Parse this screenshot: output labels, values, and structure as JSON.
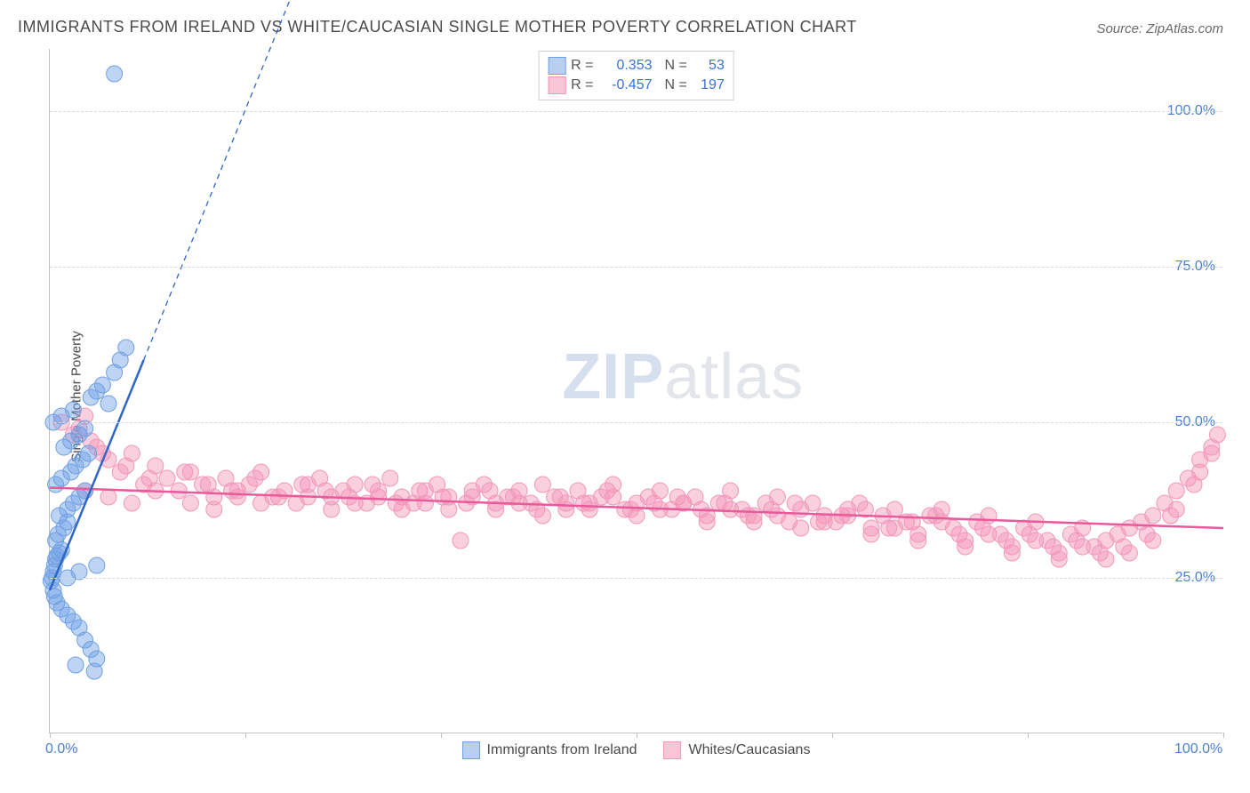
{
  "title": "IMMIGRANTS FROM IRELAND VS WHITE/CAUCASIAN SINGLE MOTHER POVERTY CORRELATION CHART",
  "source": "Source: ZipAtlas.com",
  "ylabel": "Single Mother Poverty",
  "watermark": "ZIPatlas",
  "chart": {
    "type": "scatter",
    "xlim": [
      0,
      100
    ],
    "ylim": [
      0,
      110
    ],
    "xtick_labels": [
      "0.0%",
      "100.0%"
    ],
    "xtick_positions": [
      0,
      100
    ],
    "xtick_marks": [
      0,
      16.67,
      33.33,
      50,
      66.67,
      83.33,
      100
    ],
    "ytick_labels": [
      "25.0%",
      "50.0%",
      "75.0%",
      "100.0%"
    ],
    "ytick_positions": [
      25,
      50,
      75,
      100
    ],
    "grid_color": "#d8d8d8",
    "axis_color": "#c0c0c0",
    "tick_label_color": "#4a7fd6",
    "background_color": "#ffffff",
    "marker_radius": 9,
    "marker_opacity": 0.55,
    "trend_line_width": 2.5,
    "trend_dash_width": 1.3
  },
  "series": [
    {
      "name": "Immigrants from Ireland",
      "color_fill": "rgba(110,160,230,0.45)",
      "color_stroke": "#6fa0e0",
      "swatch_fill": "#b8cff0",
      "swatch_border": "#6fa0e0",
      "trend_color": "#2e66c9",
      "R": "0.353",
      "N": "53",
      "stat_color": "#3a72d4",
      "trend": {
        "x1": 0,
        "y1": 23,
        "x2": 8,
        "y2": 60,
        "dash_x2": 22,
        "dash_y2": 125
      },
      "points": [
        [
          0.1,
          24.5
        ],
        [
          0.2,
          25
        ],
        [
          0.3,
          26
        ],
        [
          0.4,
          27
        ],
        [
          0.5,
          28
        ],
        [
          0.6,
          28.5
        ],
        [
          0.8,
          29
        ],
        [
          1.0,
          29.5
        ],
        [
          0.5,
          31
        ],
        [
          0.7,
          32
        ],
        [
          1.2,
          33
        ],
        [
          1.5,
          34
        ],
        [
          0.3,
          23
        ],
        [
          0.4,
          22
        ],
        [
          0.6,
          21
        ],
        [
          1.0,
          20
        ],
        [
          1.5,
          19
        ],
        [
          2.0,
          18
        ],
        [
          2.5,
          17
        ],
        [
          3.0,
          15
        ],
        [
          3.5,
          13.5
        ],
        [
          4.0,
          12
        ],
        [
          2.2,
          11
        ],
        [
          3.8,
          10
        ],
        [
          0.8,
          35
        ],
        [
          1.5,
          36
        ],
        [
          2.0,
          37
        ],
        [
          2.5,
          38
        ],
        [
          3.0,
          39
        ],
        [
          0.5,
          40
        ],
        [
          1.0,
          41
        ],
        [
          1.8,
          42
        ],
        [
          2.2,
          43
        ],
        [
          2.8,
          44
        ],
        [
          3.3,
          45
        ],
        [
          1.2,
          46
        ],
        [
          1.8,
          47
        ],
        [
          2.5,
          48
        ],
        [
          3.0,
          49
        ],
        [
          0.3,
          50
        ],
        [
          1.0,
          51
        ],
        [
          2.0,
          52
        ],
        [
          5.0,
          53
        ],
        [
          3.5,
          54
        ],
        [
          4.0,
          55
        ],
        [
          4.5,
          56
        ],
        [
          5.5,
          58
        ],
        [
          6.0,
          60
        ],
        [
          6.5,
          62
        ],
        [
          1.5,
          25
        ],
        [
          2.5,
          26
        ],
        [
          4.0,
          27
        ],
        [
          5.5,
          106
        ]
      ]
    },
    {
      "name": "Whites/Caucasians",
      "color_fill": "rgba(245,150,185,0.45)",
      "color_stroke": "#f296b9",
      "swatch_fill": "#f9c6d8",
      "swatch_border": "#f296b9",
      "trend_color": "#e85a9a",
      "R": "-0.457",
      "N": "197",
      "stat_color": "#3a72d4",
      "trend": {
        "x1": 0,
        "y1": 39.5,
        "x2": 100,
        "y2": 33
      },
      "points": [
        [
          1,
          50
        ],
        [
          2,
          48
        ],
        [
          3,
          51
        ],
        [
          4,
          46
        ],
        [
          5,
          44
        ],
        [
          6,
          42
        ],
        [
          7,
          45
        ],
        [
          8,
          40
        ],
        [
          9,
          43
        ],
        [
          10,
          41
        ],
        [
          11,
          39
        ],
        [
          12,
          42
        ],
        [
          13,
          40
        ],
        [
          14,
          38
        ],
        [
          15,
          41
        ],
        [
          16,
          39
        ],
        [
          17,
          40
        ],
        [
          18,
          42
        ],
        [
          19,
          38
        ],
        [
          20,
          39
        ],
        [
          21,
          37
        ],
        [
          22,
          40
        ],
        [
          23,
          41
        ],
        [
          24,
          38
        ],
        [
          25,
          39
        ],
        [
          26,
          40
        ],
        [
          27,
          37
        ],
        [
          28,
          39
        ],
        [
          29,
          41
        ],
        [
          30,
          38
        ],
        [
          31,
          37
        ],
        [
          32,
          39
        ],
        [
          33,
          40
        ],
        [
          34,
          38
        ],
        [
          35,
          31
        ],
        [
          36,
          39
        ],
        [
          37,
          40
        ],
        [
          38,
          37
        ],
        [
          39,
          38
        ],
        [
          40,
          39
        ],
        [
          41,
          37
        ],
        [
          42,
          40
        ],
        [
          43,
          38
        ],
        [
          44,
          36
        ],
        [
          45,
          39
        ],
        [
          46,
          37
        ],
        [
          47,
          38
        ],
        [
          48,
          40
        ],
        [
          49,
          36
        ],
        [
          50,
          37
        ],
        [
          51,
          38
        ],
        [
          52,
          39
        ],
        [
          53,
          36
        ],
        [
          54,
          37
        ],
        [
          55,
          38
        ],
        [
          56,
          35
        ],
        [
          57,
          37
        ],
        [
          58,
          39
        ],
        [
          59,
          36
        ],
        [
          60,
          35
        ],
        [
          61,
          37
        ],
        [
          62,
          38
        ],
        [
          63,
          34
        ],
        [
          64,
          36
        ],
        [
          65,
          37
        ],
        [
          66,
          35
        ],
        [
          67,
          34
        ],
        [
          68,
          36
        ],
        [
          69,
          37
        ],
        [
          70,
          33
        ],
        [
          71,
          35
        ],
        [
          72,
          36
        ],
        [
          73,
          34
        ],
        [
          74,
          32
        ],
        [
          75,
          35
        ],
        [
          76,
          36
        ],
        [
          77,
          33
        ],
        [
          78,
          31
        ],
        [
          79,
          34
        ],
        [
          80,
          35
        ],
        [
          81,
          32
        ],
        [
          82,
          30
        ],
        [
          83,
          33
        ],
        [
          84,
          34
        ],
        [
          85,
          31
        ],
        [
          86,
          29
        ],
        [
          87,
          32
        ],
        [
          88,
          33
        ],
        [
          89,
          30
        ],
        [
          90,
          31
        ],
        [
          91,
          32
        ],
        [
          92,
          33
        ],
        [
          93,
          34
        ],
        [
          94,
          35
        ],
        [
          95,
          37
        ],
        [
          96,
          39
        ],
        [
          97,
          41
        ],
        [
          98,
          44
        ],
        [
          99,
          46
        ],
        [
          99.5,
          48
        ],
        [
          2.5,
          49
        ],
        [
          3.5,
          47
        ],
        [
          4.5,
          45
        ],
        [
          6.5,
          43
        ],
        [
          8.5,
          41
        ],
        [
          11.5,
          42
        ],
        [
          13.5,
          40
        ],
        [
          15.5,
          39
        ],
        [
          17.5,
          41
        ],
        [
          19.5,
          38
        ],
        [
          21.5,
          40
        ],
        [
          23.5,
          39
        ],
        [
          25.5,
          38
        ],
        [
          27.5,
          40
        ],
        [
          29.5,
          37
        ],
        [
          31.5,
          39
        ],
        [
          33.5,
          38
        ],
        [
          35.5,
          37
        ],
        [
          37.5,
          39
        ],
        [
          39.5,
          38
        ],
        [
          41.5,
          36
        ],
        [
          43.5,
          38
        ],
        [
          45.5,
          37
        ],
        [
          47.5,
          39
        ],
        [
          49.5,
          36
        ],
        [
          51.5,
          37
        ],
        [
          53.5,
          38
        ],
        [
          55.5,
          36
        ],
        [
          57.5,
          37
        ],
        [
          59.5,
          35
        ],
        [
          61.5,
          36
        ],
        [
          63.5,
          37
        ],
        [
          65.5,
          34
        ],
        [
          67.5,
          35
        ],
        [
          69.5,
          36
        ],
        [
          71.5,
          33
        ],
        [
          73.5,
          34
        ],
        [
          75.5,
          35
        ],
        [
          77.5,
          32
        ],
        [
          79.5,
          33
        ],
        [
          81.5,
          31
        ],
        [
          83.5,
          32
        ],
        [
          85.5,
          30
        ],
        [
          87.5,
          31
        ],
        [
          89.5,
          29
        ],
        [
          91.5,
          30
        ],
        [
          93.5,
          32
        ],
        [
          95.5,
          35
        ],
        [
          97.5,
          40
        ],
        [
          3,
          39
        ],
        [
          5,
          38
        ],
        [
          7,
          37
        ],
        [
          9,
          39
        ],
        [
          12,
          37
        ],
        [
          14,
          36
        ],
        [
          16,
          38
        ],
        [
          18,
          37
        ],
        [
          22,
          38
        ],
        [
          24,
          36
        ],
        [
          26,
          37
        ],
        [
          28,
          38
        ],
        [
          30,
          36
        ],
        [
          32,
          37
        ],
        [
          34,
          36
        ],
        [
          36,
          38
        ],
        [
          38,
          36
        ],
        [
          40,
          37
        ],
        [
          42,
          35
        ],
        [
          44,
          37
        ],
        [
          46,
          36
        ],
        [
          48,
          38
        ],
        [
          50,
          35
        ],
        [
          52,
          36
        ],
        [
          54,
          37
        ],
        [
          56,
          34
        ],
        [
          58,
          36
        ],
        [
          60,
          34
        ],
        [
          62,
          35
        ],
        [
          64,
          33
        ],
        [
          66,
          34
        ],
        [
          68,
          35
        ],
        [
          70,
          32
        ],
        [
          72,
          33
        ],
        [
          74,
          31
        ],
        [
          76,
          34
        ],
        [
          78,
          30
        ],
        [
          80,
          32
        ],
        [
          82,
          29
        ],
        [
          84,
          31
        ],
        [
          86,
          28
        ],
        [
          88,
          30
        ],
        [
          90,
          28
        ],
        [
          92,
          29
        ],
        [
          94,
          31
        ],
        [
          96,
          36
        ],
        [
          98,
          42
        ],
        [
          99,
          45
        ]
      ]
    }
  ],
  "bottom_legend": [
    {
      "label": "Immigrants from Ireland",
      "fill": "#b8cff0",
      "border": "#6fa0e0"
    },
    {
      "label": "Whites/Caucasians",
      "fill": "#f9c6d8",
      "border": "#f296b9"
    }
  ]
}
